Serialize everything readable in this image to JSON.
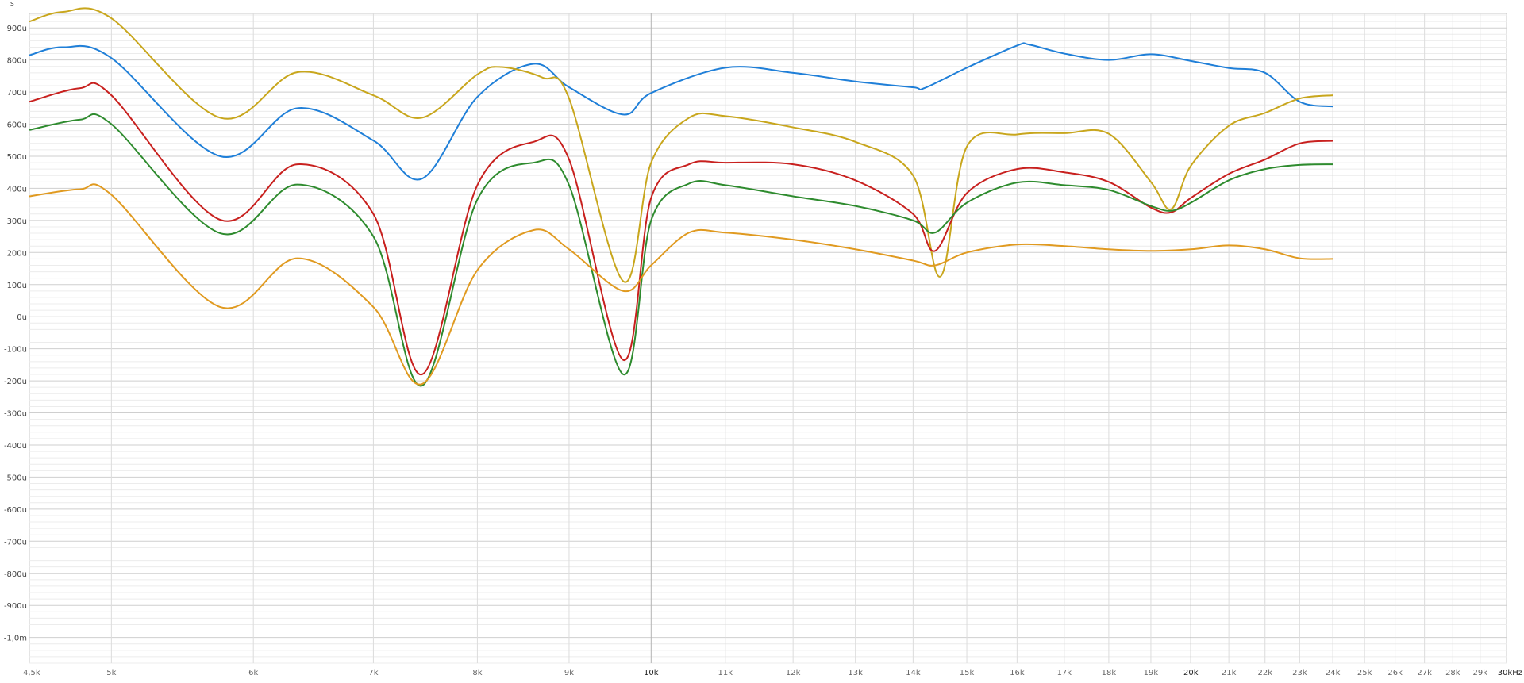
{
  "chart_data": {
    "type": "line",
    "title": "",
    "y_unit_label": "s",
    "xlabel": "",
    "ylabel": "",
    "x_scale": "log",
    "xlim": [
      4500,
      30000
    ],
    "ylim": [
      -0.00108,
      0.000945
    ],
    "grid": true,
    "legend": "none",
    "x_ticks": [
      {
        "value": 4500,
        "label": "4,5k"
      },
      {
        "value": 5000,
        "label": "5k"
      },
      {
        "value": 6000,
        "label": "6k"
      },
      {
        "value": 7000,
        "label": "7k"
      },
      {
        "value": 8000,
        "label": "8k"
      },
      {
        "value": 9000,
        "label": "9k"
      },
      {
        "value": 10000,
        "label": "10k",
        "major": true
      },
      {
        "value": 11000,
        "label": "11k"
      },
      {
        "value": 12000,
        "label": "12k"
      },
      {
        "value": 13000,
        "label": "13k"
      },
      {
        "value": 14000,
        "label": "14k"
      },
      {
        "value": 15000,
        "label": "15k"
      },
      {
        "value": 16000,
        "label": "16k"
      },
      {
        "value": 17000,
        "label": "17k"
      },
      {
        "value": 18000,
        "label": "18k"
      },
      {
        "value": 19000,
        "label": "19k"
      },
      {
        "value": 20000,
        "label": "20k",
        "major": true
      },
      {
        "value": 21000,
        "label": "21k"
      },
      {
        "value": 22000,
        "label": "22k"
      },
      {
        "value": 23000,
        "label": "23k"
      },
      {
        "value": 24000,
        "label": "24k"
      },
      {
        "value": 25000,
        "label": "25k"
      },
      {
        "value": 26000,
        "label": "26k"
      },
      {
        "value": 27000,
        "label": "27k"
      },
      {
        "value": 28000,
        "label": "28k"
      },
      {
        "value": 29000,
        "label": "29k"
      },
      {
        "value": 30000,
        "label": "30kHz",
        "major": true
      }
    ],
    "y_ticks": [
      {
        "value": 900,
        "label": "900u"
      },
      {
        "value": 800,
        "label": "800u"
      },
      {
        "value": 700,
        "label": "700u"
      },
      {
        "value": 600,
        "label": "600u"
      },
      {
        "value": 500,
        "label": "500u"
      },
      {
        "value": 400,
        "label": "400u"
      },
      {
        "value": 300,
        "label": "300u"
      },
      {
        "value": 200,
        "label": "200u"
      },
      {
        "value": 100,
        "label": "100u"
      },
      {
        "value": 0,
        "label": "0u"
      },
      {
        "value": -100,
        "label": "-100u"
      },
      {
        "value": -200,
        "label": "-200u"
      },
      {
        "value": -300,
        "label": "-300u"
      },
      {
        "value": -400,
        "label": "-400u"
      },
      {
        "value": -500,
        "label": "-500u"
      },
      {
        "value": -600,
        "label": "-600u"
      },
      {
        "value": -700,
        "label": "-700u"
      },
      {
        "value": -800,
        "label": "-800u"
      },
      {
        "value": -900,
        "label": "-900u"
      },
      {
        "value": -1000,
        "label": "-1,0m"
      }
    ],
    "y_values_unit": "microseconds",
    "series": [
      {
        "color": "#1f7fd8",
        "x": [
          4500,
          4700,
          5000,
          5750,
          6350,
          7000,
          7450,
          8000,
          8600,
          9000,
          9650,
          10000,
          11000,
          12000,
          13000,
          14000,
          14200,
          15000,
          16000,
          16250,
          17000,
          18000,
          19000,
          20000,
          21000,
          22000,
          23000,
          24000
        ],
        "y": [
          815,
          840,
          806,
          500,
          650,
          549,
          430,
          685,
          788,
          715,
          630,
          697,
          776,
          760,
          733,
          715,
          712,
          776,
          845,
          848,
          820,
          800,
          818,
          797,
          775,
          760,
          670,
          655
        ]
      },
      {
        "color": "#c8a61c",
        "x": [
          4500,
          4700,
          5000,
          5750,
          6350,
          7000,
          7450,
          8000,
          8250,
          8700,
          9000,
          9650,
          10000,
          10500,
          11000,
          12000,
          13000,
          14000,
          14500,
          15000,
          16000,
          17000,
          18000,
          19000,
          19500,
          20000,
          21000,
          22000,
          23000,
          24000
        ],
        "y": [
          920,
          950,
          930,
          620,
          762,
          690,
          620,
          755,
          778,
          745,
          680,
          110,
          480,
          620,
          625,
          590,
          545,
          440,
          125,
          530,
          568,
          572,
          570,
          420,
          335,
          470,
          595,
          635,
          680,
          690
        ]
      },
      {
        "color": "#c8201e",
        "x": [
          4500,
          4800,
          5000,
          5750,
          6350,
          7000,
          7450,
          8000,
          8600,
          9000,
          9650,
          10000,
          10500,
          11000,
          12000,
          13000,
          14000,
          14400,
          15000,
          16000,
          17000,
          18000,
          19000,
          19500,
          20000,
          21000,
          22000,
          23000,
          24000
        ],
        "y": [
          670,
          712,
          690,
          302,
          475,
          320,
          -180,
          410,
          545,
          490,
          -135,
          370,
          475,
          480,
          475,
          425,
          320,
          205,
          385,
          460,
          450,
          420,
          340,
          325,
          370,
          445,
          490,
          540,
          548
        ]
      },
      {
        "color": "#2e8b2e",
        "x": [
          4500,
          4800,
          5000,
          5750,
          6350,
          7000,
          7450,
          8000,
          8600,
          9000,
          9650,
          10000,
          10500,
          11000,
          12000,
          13000,
          14000,
          14400,
          15000,
          16000,
          17000,
          18000,
          19000,
          19500,
          20000,
          21000,
          22000,
          23000,
          24000
        ],
        "y": [
          582,
          614,
          600,
          260,
          412,
          250,
          -215,
          365,
          480,
          410,
          -180,
          300,
          415,
          410,
          375,
          345,
          300,
          262,
          355,
          418,
          410,
          395,
          345,
          330,
          355,
          425,
          460,
          473,
          475
        ]
      },
      {
        "color": "#e09a20",
        "x": [
          4500,
          4800,
          5000,
          5750,
          6350,
          7000,
          7450,
          8000,
          8600,
          9000,
          9650,
          10000,
          10500,
          11000,
          12000,
          13000,
          14000,
          14400,
          15000,
          16000,
          17000,
          18000,
          19000,
          20000,
          21000,
          22000,
          23000,
          24000
        ],
        "y": [
          375,
          397,
          380,
          30,
          182,
          30,
          -210,
          145,
          270,
          210,
          80,
          160,
          262,
          262,
          240,
          210,
          175,
          160,
          200,
          225,
          220,
          210,
          205,
          210,
          222,
          210,
          182,
          180
        ]
      }
    ]
  }
}
